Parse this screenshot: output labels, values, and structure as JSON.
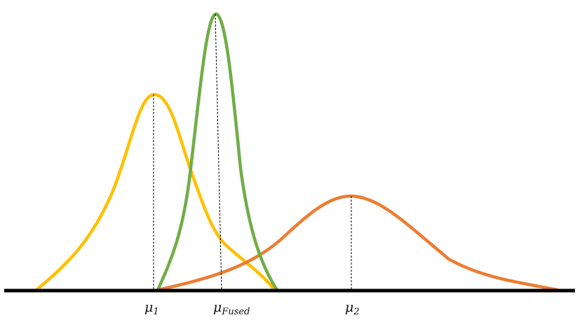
{
  "diagram": {
    "curves": [
      {
        "name": "yellow-distribution",
        "color": "#FFC000"
      },
      {
        "name": "green-distribution",
        "color": "#70AD47"
      },
      {
        "name": "orange-distribution",
        "color": "#ED7D31"
      }
    ],
    "axis_color": "#000000",
    "guide_color": "#000000",
    "labels": {
      "mu1_symbol": "μ",
      "mu1_sub": "1",
      "mufused_symbol": "μ",
      "mufused_sub": "Fused",
      "mu2_symbol": "μ",
      "mu2_sub": "2"
    }
  }
}
